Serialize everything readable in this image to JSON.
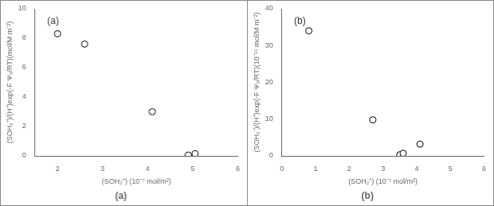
{
  "chart_data": [
    {
      "type": "scatter",
      "x_label": "(SOH₂⁺) (10⁻⁷ mol/m²)",
      "y_label": "(SOH₂⁺)/(H⁺)exp(-F Ψ₀/RT)(mol/M m⁻²)",
      "annotations": [
        "(a)",
        "(a)"
      ],
      "x": [
        2.0,
        2.6,
        4.1,
        4.9,
        5.05
      ],
      "values": [
        8.3,
        7.6,
        3.0,
        0.05,
        0.15
      ],
      "xlim": [
        1.5,
        6.0
      ],
      "ylim": [
        0,
        10
      ],
      "xticks": [
        2,
        3,
        4,
        5,
        6
      ],
      "yticks": [
        0,
        2,
        4,
        6,
        8,
        10
      ],
      "marker": "circle",
      "color": "#000000",
      "grid": false
    },
    {
      "type": "scatter",
      "x_label": "(SOH₂⁺) (10⁻⁷ mol/m²)",
      "y_label": "(SOH₂⁻)/(H⁺)exp(-F Ψ₀/RT)(10⁻¹⁶ mol/M m⁻²)",
      "annotations": [
        "(b)",
        "(b)"
      ],
      "x": [
        0.8,
        2.7,
        3.5,
        3.6,
        4.1
      ],
      "values": [
        34.0,
        9.8,
        0.3,
        0.7,
        3.2
      ],
      "xlim": [
        0,
        6.0
      ],
      "ylim": [
        0,
        40
      ],
      "xticks": [
        0,
        1,
        2,
        3,
        4,
        5,
        6
      ],
      "yticks": [
        0,
        10,
        20,
        30,
        40
      ],
      "marker": "circle",
      "color": "#000000",
      "grid": false
    }
  ]
}
